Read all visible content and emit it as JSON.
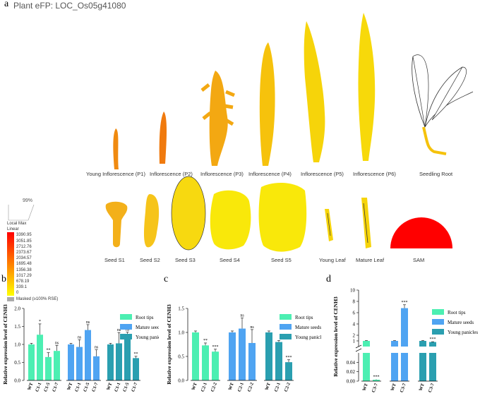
{
  "panel_a": {
    "label": "a",
    "title": "Plant eFP: LOC_Os05g41080",
    "samples_top": [
      "Young Inflorescence (P1)",
      "Inflorescence (P2)",
      "Inflorescence (P3)",
      "Inflorescence (P4)",
      "Inflorescence (P5)",
      "Inflorescence (P6)",
      "Seedling Root"
    ],
    "samples_bottom": [
      "Seed S1",
      "Seed S2",
      "Seed S3",
      "Seed S4",
      "Seed S5",
      "Young Leaf",
      "Mature Leaf",
      "SAM"
    ],
    "legend": {
      "percent": "99%",
      "title1": "Local Max",
      "title2": "Linear",
      "values": [
        "3390.95",
        "3051.85",
        "2712.76",
        "2373.67",
        "2034.57",
        "1695.48",
        "1356.38",
        "1017.29",
        "678.19",
        "339.1",
        "0"
      ],
      "masked": "Masked (≥100% RSE)"
    }
  },
  "colors": {
    "root": "#4cefb2",
    "mature": "#4fa4f2",
    "young": "#2a9fb0"
  },
  "chart_data": [
    {
      "panel": "b",
      "type": "bar",
      "ylabel": "Relative expression level of CENH3",
      "ylim": [
        0,
        2.0
      ],
      "yticks": [
        "0.0",
        "0.5",
        "1.0",
        "1.5",
        "2.0"
      ],
      "legend": [
        "Root tips",
        "Mature seeds",
        "Young panicles"
      ],
      "groups": [
        {
          "series": "Root tips",
          "categories": [
            "WT",
            "C1-1",
            "C1-5",
            "C1-7"
          ],
          "values": [
            1.0,
            1.27,
            0.65,
            0.82
          ],
          "err": [
            0.03,
            0.3,
            0.12,
            0.15
          ],
          "sig": [
            "",
            "*",
            "**",
            "ns"
          ]
        },
        {
          "series": "Mature seeds",
          "categories": [
            "WT",
            "C1-1",
            "C1-5",
            "C1-7"
          ],
          "values": [
            1.0,
            0.93,
            1.4,
            0.67
          ],
          "err": [
            0.03,
            0.2,
            0.15,
            0.18
          ],
          "sig": [
            "",
            "ns",
            "ns",
            "ns"
          ]
        },
        {
          "series": "Young panicles",
          "categories": [
            "WT",
            "C1-1",
            "C1-5",
            "C1-7"
          ],
          "values": [
            1.0,
            1.03,
            1.22,
            0.62
          ],
          "err": [
            0.03,
            0.3,
            0.12,
            0.05
          ],
          "sig": [
            "",
            "ns",
            "ns",
            "**"
          ]
        }
      ]
    },
    {
      "panel": "c",
      "type": "bar",
      "ylabel": "Relative expression level of CENH3",
      "ylim": [
        0,
        1.5
      ],
      "yticks": [
        "0.0",
        "0.5",
        "1.0",
        "1.5"
      ],
      "legend": [
        "Root tips",
        "Mature seeds",
        "Young panicles"
      ],
      "groups": [
        {
          "series": "Root tips",
          "categories": [
            "WT",
            "C2-1",
            "C2-2"
          ],
          "values": [
            1.0,
            0.73,
            0.6
          ],
          "err": [
            0.03,
            0.05,
            0.05
          ],
          "sig": [
            "",
            "**",
            "***"
          ]
        },
        {
          "series": "Mature seeds",
          "categories": [
            "WT",
            "C2-1",
            "C2-2"
          ],
          "values": [
            1.0,
            1.08,
            0.78
          ],
          "err": [
            0.03,
            0.22,
            0.28
          ],
          "sig": [
            "",
            "ns",
            "ns"
          ]
        },
        {
          "series": "Young panicles",
          "categories": [
            "WT",
            "C2-1",
            "C2-2"
          ],
          "values": [
            1.0,
            0.8,
            0.38
          ],
          "err": [
            0.03,
            0.03,
            0.05
          ],
          "sig": [
            "",
            "",
            "***"
          ]
        }
      ]
    },
    {
      "panel": "d",
      "type": "bar",
      "ylabel": "Relative expression level of CENH3",
      "ylim_lower": [
        0,
        0.06
      ],
      "ylim_upper": [
        0,
        10
      ],
      "yticks_lower": [
        "0.00",
        "0.02",
        "0.04"
      ],
      "yticks_upper": [
        "1",
        "2",
        "4",
        "6",
        "8",
        "10"
      ],
      "legend": [
        "Root tips",
        "Mature seeds",
        "Young panicles"
      ],
      "groups": [
        {
          "series": "Root tips",
          "categories": [
            "WT",
            "C3-7"
          ],
          "values": [
            1.0,
            0.003
          ],
          "err": [
            0.05,
            0.001
          ],
          "sig": [
            "",
            "***"
          ]
        },
        {
          "series": "Mature seeds",
          "categories": [
            "WT",
            "C3-7"
          ],
          "values": [
            1.0,
            6.8
          ],
          "err": [
            0.05,
            0.6
          ],
          "sig": [
            "",
            "***"
          ]
        },
        {
          "series": "Young panicles",
          "categories": [
            "WT",
            "C3-7"
          ],
          "values": [
            1.0,
            0.8
          ],
          "err": [
            0.05,
            0.05
          ],
          "sig": [
            "",
            "***"
          ]
        }
      ]
    }
  ]
}
